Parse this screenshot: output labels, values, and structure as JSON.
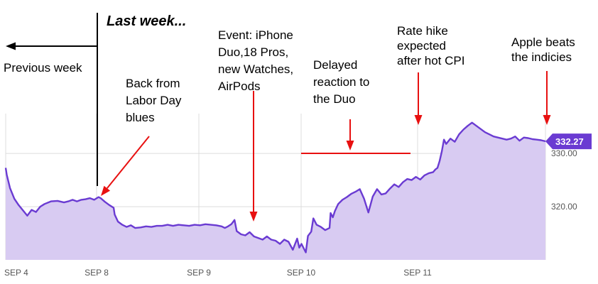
{
  "chart_data": {
    "type": "area",
    "title": "",
    "xlabel": "",
    "ylabel": "",
    "x_ticks": [
      "SEP 4",
      "SEP 8",
      "SEP 9",
      "SEP 10",
      "SEP 11"
    ],
    "y_ticks": [
      {
        "value": 320,
        "label": "320.00"
      },
      {
        "value": 330,
        "label": "330.00"
      }
    ],
    "ylim": [
      310,
      337.5
    ],
    "last_price": {
      "value": 332.27,
      "label": "332.27"
    },
    "series": [
      {
        "values": [
          [
            0.0,
            327.3
          ],
          [
            0.01,
            326.0
          ],
          [
            0.04,
            323.5
          ],
          [
            0.08,
            321.5
          ],
          [
            0.12,
            320.3
          ],
          [
            0.16,
            319.3
          ],
          [
            0.2,
            318.3
          ],
          [
            0.24,
            319.4
          ],
          [
            0.28,
            319.0
          ],
          [
            0.32,
            320.0
          ],
          [
            0.36,
            320.5
          ],
          [
            0.42,
            321.0
          ],
          [
            0.48,
            321.1
          ],
          [
            0.54,
            320.8
          ],
          [
            0.58,
            321.0
          ],
          [
            0.62,
            321.3
          ],
          [
            0.66,
            321.0
          ],
          [
            0.7,
            321.3
          ],
          [
            0.74,
            321.4
          ],
          [
            0.78,
            321.6
          ],
          [
            0.82,
            321.3
          ],
          [
            0.86,
            321.8
          ],
          [
            0.88,
            321.6
          ],
          [
            0.92,
            320.9
          ],
          [
            0.96,
            320.3
          ],
          [
            1.0,
            319.8
          ],
          [
            1.01,
            318.5
          ],
          [
            1.04,
            317.2
          ],
          [
            1.08,
            316.6
          ],
          [
            1.12,
            316.2
          ],
          [
            1.16,
            316.5
          ],
          [
            1.2,
            316.0
          ],
          [
            1.25,
            316.1
          ],
          [
            1.3,
            316.3
          ],
          [
            1.35,
            316.2
          ],
          [
            1.4,
            316.4
          ],
          [
            1.45,
            316.4
          ],
          [
            1.5,
            316.6
          ],
          [
            1.55,
            316.4
          ],
          [
            1.6,
            316.6
          ],
          [
            1.65,
            316.5
          ],
          [
            1.7,
            316.4
          ],
          [
            1.75,
            316.6
          ],
          [
            1.8,
            316.5
          ],
          [
            1.85,
            316.7
          ],
          [
            1.9,
            316.6
          ],
          [
            1.95,
            316.5
          ],
          [
            2.0,
            316.3
          ],
          [
            2.03,
            316.0
          ],
          [
            2.06,
            316.3
          ],
          [
            2.09,
            316.7
          ],
          [
            2.12,
            317.5
          ],
          [
            2.14,
            315.4
          ],
          [
            2.18,
            314.8
          ],
          [
            2.22,
            314.6
          ],
          [
            2.26,
            315.2
          ],
          [
            2.3,
            314.4
          ],
          [
            2.34,
            314.1
          ],
          [
            2.38,
            313.8
          ],
          [
            2.42,
            314.4
          ],
          [
            2.46,
            313.8
          ],
          [
            2.5,
            313.6
          ],
          [
            2.54,
            313.0
          ],
          [
            2.58,
            313.8
          ],
          [
            2.62,
            313.4
          ],
          [
            2.66,
            311.9
          ],
          [
            2.7,
            314.0
          ],
          [
            2.72,
            312.3
          ],
          [
            2.74,
            313.0
          ],
          [
            2.78,
            311.4
          ],
          [
            2.8,
            314.5
          ],
          [
            2.83,
            315.3
          ],
          [
            2.85,
            317.8
          ],
          [
            2.88,
            316.6
          ],
          [
            2.92,
            316.2
          ],
          [
            2.96,
            315.6
          ],
          [
            3.0,
            316.0
          ],
          [
            3.01,
            318.8
          ],
          [
            3.03,
            318.0
          ],
          [
            3.05,
            319.2
          ],
          [
            3.08,
            320.5
          ],
          [
            3.12,
            321.3
          ],
          [
            3.16,
            321.8
          ],
          [
            3.2,
            322.4
          ],
          [
            3.24,
            322.8
          ],
          [
            3.28,
            323.3
          ],
          [
            3.32,
            321.5
          ],
          [
            3.36,
            318.9
          ],
          [
            3.4,
            321.9
          ],
          [
            3.44,
            323.3
          ],
          [
            3.48,
            322.3
          ],
          [
            3.52,
            322.5
          ],
          [
            3.56,
            323.4
          ],
          [
            3.6,
            324.2
          ],
          [
            3.64,
            323.7
          ],
          [
            3.68,
            324.6
          ],
          [
            3.72,
            325.2
          ],
          [
            3.76,
            325.0
          ],
          [
            3.8,
            325.6
          ],
          [
            3.84,
            325.1
          ],
          [
            3.88,
            325.9
          ],
          [
            3.92,
            326.3
          ],
          [
            3.96,
            326.5
          ],
          [
            3.98,
            327.0
          ],
          [
            4.0,
            327.3
          ],
          [
            4.02,
            328.6
          ],
          [
            4.04,
            330.4
          ],
          [
            4.06,
            332.6
          ],
          [
            4.08,
            331.8
          ],
          [
            4.12,
            332.8
          ],
          [
            4.16,
            332.2
          ],
          [
            4.2,
            333.6
          ],
          [
            4.24,
            334.5
          ],
          [
            4.28,
            335.2
          ],
          [
            4.32,
            335.8
          ],
          [
            4.36,
            335.2
          ],
          [
            4.4,
            334.6
          ],
          [
            4.44,
            334.0
          ],
          [
            4.48,
            333.6
          ],
          [
            4.52,
            333.2
          ],
          [
            4.56,
            333.0
          ],
          [
            4.6,
            332.8
          ],
          [
            4.64,
            332.6
          ],
          [
            4.68,
            332.8
          ],
          [
            4.72,
            333.2
          ],
          [
            4.76,
            332.4
          ],
          [
            4.8,
            333.0
          ],
          [
            4.84,
            332.9
          ],
          [
            4.88,
            332.7
          ],
          [
            4.92,
            332.6
          ],
          [
            4.96,
            332.5
          ],
          [
            5.0,
            332.3
          ]
        ]
      }
    ],
    "annotations": [
      {
        "id": "last-week",
        "lines": [
          "Last week..."
        ]
      },
      {
        "id": "previous-week",
        "lines": [
          "Previous week"
        ]
      },
      {
        "id": "labor-day",
        "lines": [
          "Back from",
          "Labor Day",
          "blues"
        ]
      },
      {
        "id": "event",
        "lines": [
          "Event: iPhone",
          "Duo,18 Pros,",
          "new Watches,",
          "AirPods"
        ]
      },
      {
        "id": "delayed",
        "lines": [
          "Delayed",
          "reaction to",
          "the Duo"
        ]
      },
      {
        "id": "rate-hike",
        "lines": [
          "Rate hike",
          "expected",
          "after hot CPI"
        ]
      },
      {
        "id": "apple-beats",
        "lines": [
          "Apple beats",
          "the indicies"
        ]
      }
    ],
    "colors": {
      "line": "#6a3bd2",
      "fill": "#d8cbf2",
      "grid": "#dcdcdc",
      "arrow": "#e81010",
      "price_tag": "#6a3bd2"
    }
  }
}
